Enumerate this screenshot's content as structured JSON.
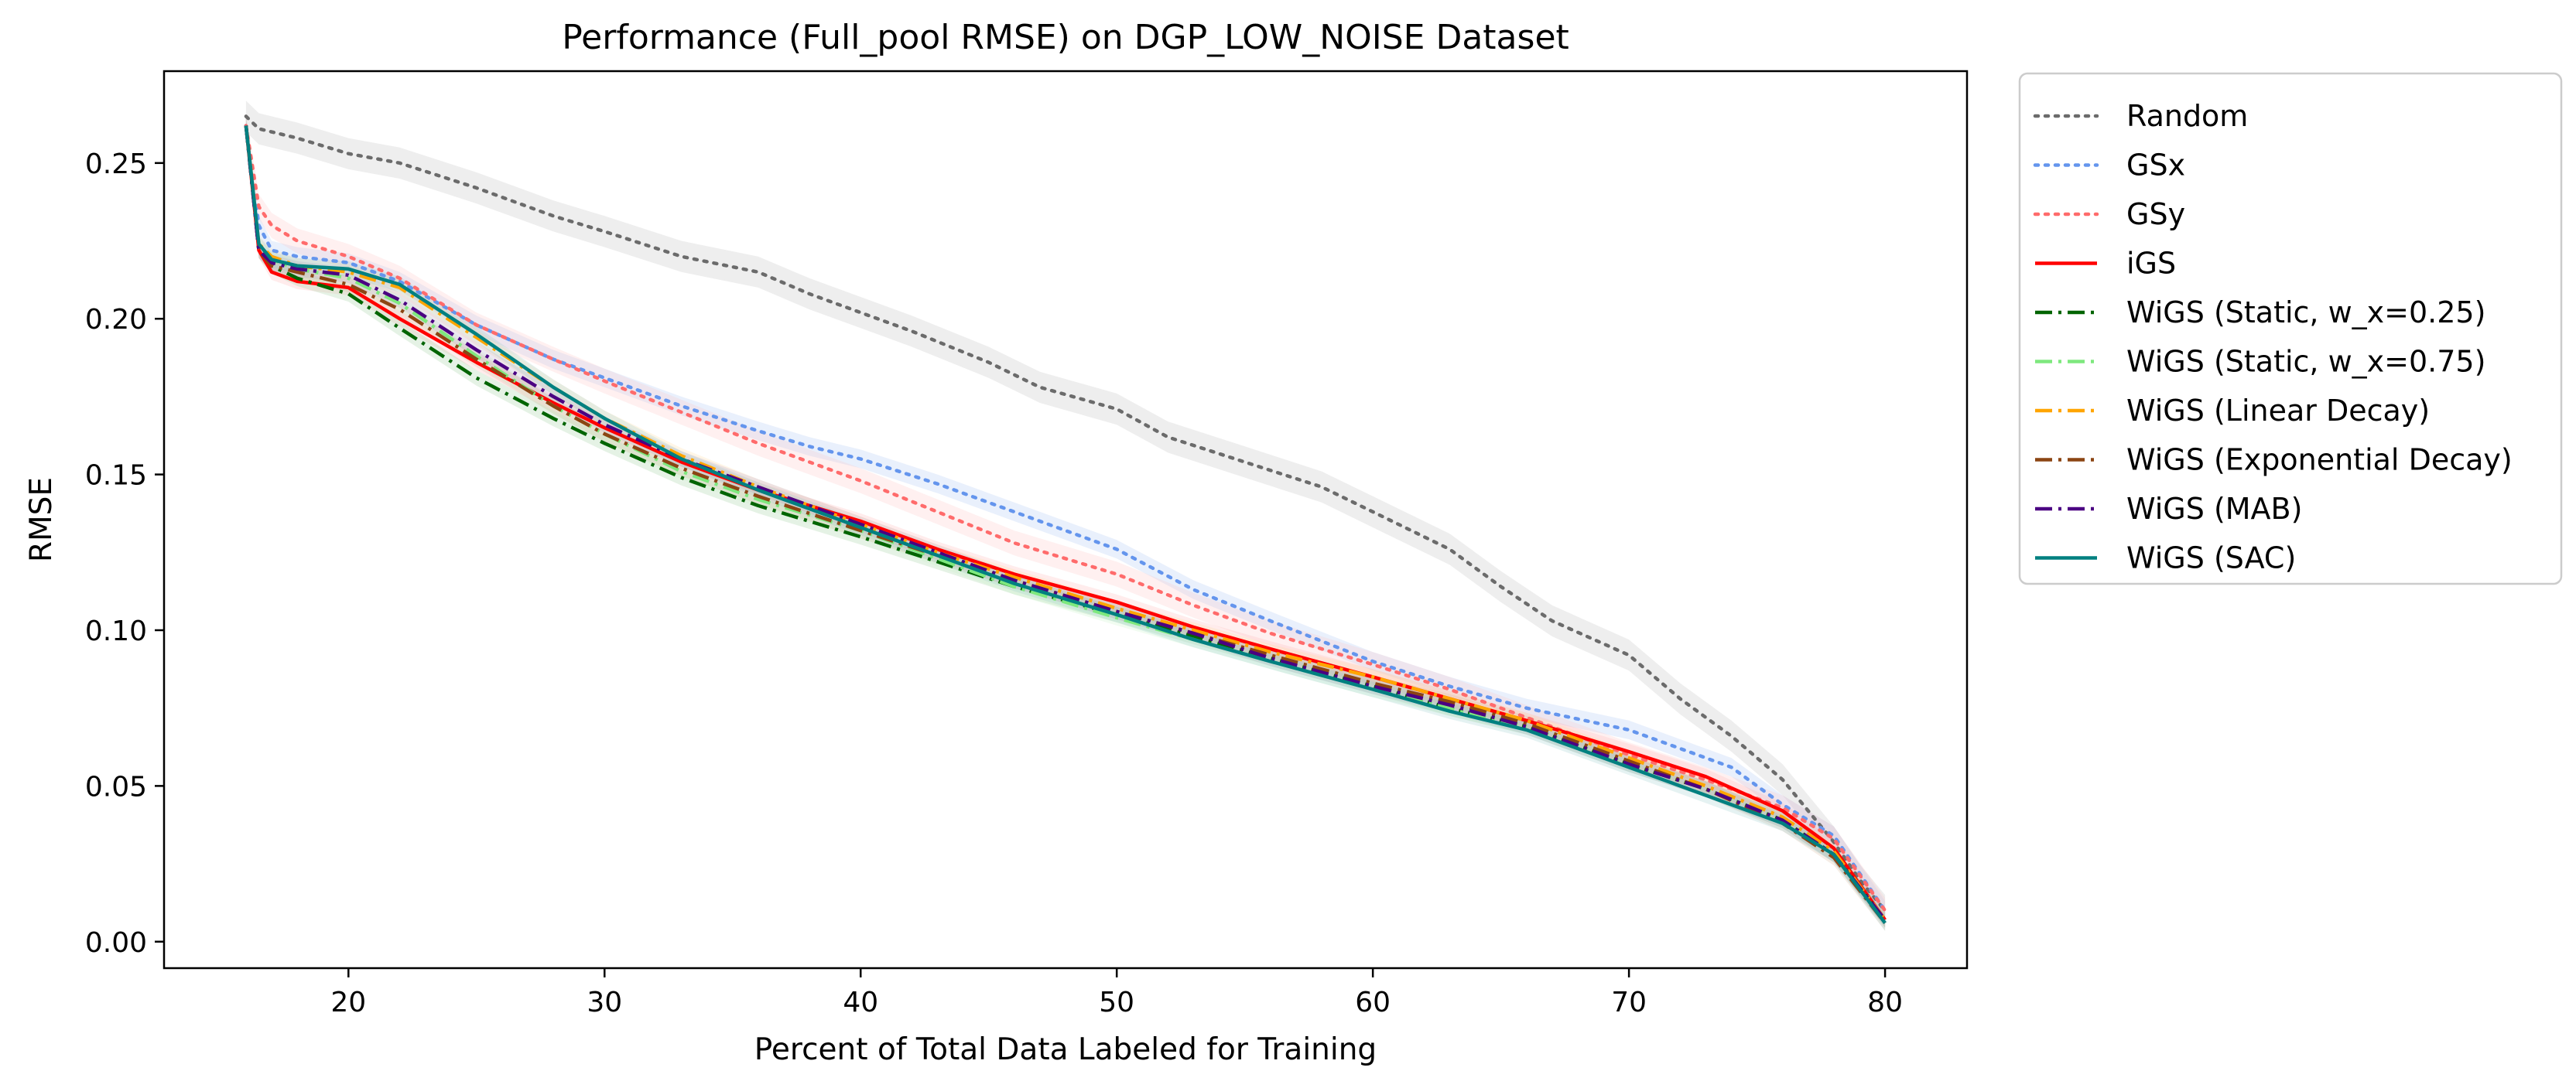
{
  "chart_data": {
    "type": "line",
    "title": "Performance (Full_pool RMSE) on DGP_LOW_NOISE Dataset",
    "xlabel": "Percent of Total Data Labeled for Training",
    "ylabel": "RMSE",
    "xlim": [
      12.8,
      83.2
    ],
    "ylim": [
      -0.0085,
      0.2795
    ],
    "xticks": [
      20,
      30,
      40,
      50,
      60,
      70,
      80
    ],
    "yticks": [
      0.0,
      0.05,
      0.1,
      0.15,
      0.2,
      0.25
    ],
    "ytick_labels": [
      "0.00",
      "0.05",
      "0.10",
      "0.15",
      "0.20",
      "0.25"
    ],
    "grid": false,
    "legend_position": "outside right, top",
    "series": [
      {
        "name": "Random",
        "color": "#6b6b6b",
        "style": "dotted",
        "band": 0.005,
        "band_color": "#bdbdbd",
        "x": [
          16,
          16.5,
          18,
          20,
          22,
          25,
          28,
          30,
          33,
          36,
          38,
          40,
          42,
          45,
          47,
          50,
          52,
          55,
          58,
          60,
          63,
          65,
          67,
          70,
          72,
          74,
          76,
          78,
          79,
          80
        ],
        "y": [
          0.265,
          0.261,
          0.258,
          0.253,
          0.25,
          0.242,
          0.233,
          0.228,
          0.22,
          0.215,
          0.208,
          0.202,
          0.196,
          0.186,
          0.178,
          0.171,
          0.162,
          0.154,
          0.146,
          0.138,
          0.126,
          0.114,
          0.103,
          0.092,
          0.078,
          0.066,
          0.052,
          0.032,
          0.02,
          0.01
        ]
      },
      {
        "name": "GSx",
        "color": "#6495ed",
        "style": "dotted",
        "band": 0.003,
        "band_color": "#a9c4f5",
        "x": [
          16,
          16.5,
          17,
          18,
          20,
          22,
          25,
          28,
          30,
          33,
          36,
          38,
          40,
          43,
          46,
          50,
          53,
          56,
          60,
          63,
          66,
          70,
          72,
          74,
          76,
          78,
          80
        ],
        "y": [
          0.262,
          0.23,
          0.222,
          0.22,
          0.218,
          0.212,
          0.198,
          0.187,
          0.181,
          0.172,
          0.164,
          0.159,
          0.155,
          0.147,
          0.138,
          0.126,
          0.113,
          0.103,
          0.09,
          0.082,
          0.075,
          0.068,
          0.062,
          0.056,
          0.044,
          0.034,
          0.01
        ]
      },
      {
        "name": "GSy",
        "color": "#ff6b6b",
        "style": "dotted",
        "band": 0.004,
        "band_color": "#ffc2c2",
        "x": [
          16,
          16.5,
          17,
          18,
          20,
          22,
          25,
          28,
          30,
          33,
          36,
          40,
          43,
          46,
          50,
          53,
          56,
          60,
          63,
          66,
          70,
          73,
          76,
          78,
          80
        ],
        "y": [
          0.262,
          0.236,
          0.23,
          0.225,
          0.22,
          0.213,
          0.198,
          0.187,
          0.18,
          0.17,
          0.16,
          0.148,
          0.138,
          0.128,
          0.118,
          0.108,
          0.099,
          0.089,
          0.081,
          0.072,
          0.06,
          0.052,
          0.043,
          0.033,
          0.01
        ]
      },
      {
        "name": "iGS",
        "color": "#ff0000",
        "style": "solid",
        "band": 0.0025,
        "band_color": "#ffb3b3",
        "x": [
          16,
          16.5,
          17,
          18,
          20,
          22,
          25,
          28,
          30,
          33,
          36,
          40,
          43,
          46,
          50,
          53,
          56,
          60,
          63,
          66,
          70,
          73,
          76,
          78,
          80
        ],
        "y": [
          0.262,
          0.222,
          0.215,
          0.212,
          0.21,
          0.2,
          0.186,
          0.173,
          0.165,
          0.154,
          0.145,
          0.135,
          0.126,
          0.118,
          0.109,
          0.101,
          0.094,
          0.085,
          0.078,
          0.071,
          0.061,
          0.053,
          0.042,
          0.03,
          0.007
        ]
      },
      {
        "name": "WiGS (Static, w_x=0.25)",
        "color": "#006400",
        "style": "dashdot",
        "band": 0.0025,
        "band_color": "#99cc99",
        "x": [
          16,
          16.5,
          17,
          18,
          20,
          22,
          25,
          28,
          30,
          33,
          36,
          40,
          43,
          46,
          50,
          53,
          56,
          60,
          63,
          66,
          70,
          73,
          76,
          78,
          80
        ],
        "y": [
          0.262,
          0.222,
          0.217,
          0.213,
          0.208,
          0.197,
          0.181,
          0.168,
          0.16,
          0.149,
          0.14,
          0.13,
          0.122,
          0.114,
          0.105,
          0.098,
          0.091,
          0.082,
          0.075,
          0.069,
          0.057,
          0.049,
          0.039,
          0.028,
          0.007
        ]
      },
      {
        "name": "WiGS (Static, w_x=0.75)",
        "color": "#7ee87e",
        "style": "dashdot",
        "band": 0.0025,
        "band_color": "#c9f5c9",
        "x": [
          16,
          16.5,
          17,
          18,
          20,
          22,
          25,
          28,
          30,
          33,
          36,
          40,
          43,
          46,
          50,
          53,
          56,
          60,
          63,
          66,
          70,
          73,
          76,
          78,
          80
        ],
        "y": [
          0.262,
          0.223,
          0.219,
          0.216,
          0.213,
          0.205,
          0.188,
          0.172,
          0.163,
          0.151,
          0.142,
          0.132,
          0.123,
          0.114,
          0.104,
          0.097,
          0.09,
          0.081,
          0.075,
          0.069,
          0.057,
          0.049,
          0.039,
          0.028,
          0.007
        ]
      },
      {
        "name": "WiGS (Linear Decay)",
        "color": "#ffa500",
        "style": "dashdot",
        "band": 0.0025,
        "band_color": "#ffdca0",
        "x": [
          16,
          16.5,
          17,
          18,
          20,
          22,
          25,
          28,
          30,
          33,
          36,
          40,
          43,
          46,
          50,
          53,
          56,
          60,
          63,
          66,
          70,
          73,
          76,
          78,
          80
        ],
        "y": [
          0.262,
          0.224,
          0.22,
          0.217,
          0.215,
          0.21,
          0.194,
          0.178,
          0.168,
          0.156,
          0.146,
          0.134,
          0.125,
          0.117,
          0.107,
          0.1,
          0.093,
          0.085,
          0.078,
          0.071,
          0.059,
          0.05,
          0.04,
          0.029,
          0.007
        ]
      },
      {
        "name": "WiGS (Exponential Decay)",
        "color": "#8b4513",
        "style": "dashdot",
        "band": 0.0025,
        "band_color": "#d9b89a",
        "x": [
          16,
          16.5,
          17,
          18,
          20,
          22,
          25,
          28,
          30,
          33,
          36,
          40,
          43,
          46,
          50,
          53,
          56,
          60,
          63,
          66,
          70,
          73,
          76,
          78,
          80
        ],
        "y": [
          0.262,
          0.222,
          0.217,
          0.215,
          0.211,
          0.203,
          0.187,
          0.172,
          0.163,
          0.152,
          0.143,
          0.132,
          0.124,
          0.116,
          0.106,
          0.099,
          0.092,
          0.083,
          0.077,
          0.07,
          0.058,
          0.049,
          0.038,
          0.027,
          0.006
        ]
      },
      {
        "name": "WiGS (MAB)",
        "color": "#4b0082",
        "style": "dashdot",
        "band": 0.0025,
        "band_color": "#b8a3cc",
        "x": [
          16,
          16.5,
          17,
          18,
          20,
          22,
          25,
          28,
          30,
          33,
          36,
          40,
          43,
          46,
          50,
          53,
          56,
          60,
          63,
          66,
          70,
          73,
          76,
          78,
          80
        ],
        "y": [
          0.262,
          0.222,
          0.218,
          0.216,
          0.214,
          0.206,
          0.19,
          0.175,
          0.166,
          0.155,
          0.146,
          0.134,
          0.125,
          0.116,
          0.106,
          0.099,
          0.091,
          0.082,
          0.076,
          0.069,
          0.057,
          0.049,
          0.039,
          0.028,
          0.007
        ]
      },
      {
        "name": "WiGS (SAC)",
        "color": "#008080",
        "style": "solid",
        "band": 0.0025,
        "band_color": "#99cccc",
        "x": [
          16,
          16.5,
          17,
          18,
          20,
          22,
          25,
          28,
          30,
          33,
          36,
          40,
          43,
          46,
          50,
          53,
          56,
          60,
          63,
          66,
          70,
          73,
          76,
          78,
          80
        ],
        "y": [
          0.262,
          0.224,
          0.219,
          0.217,
          0.216,
          0.211,
          0.195,
          0.178,
          0.168,
          0.155,
          0.145,
          0.133,
          0.124,
          0.115,
          0.105,
          0.097,
          0.09,
          0.081,
          0.074,
          0.068,
          0.056,
          0.047,
          0.038,
          0.028,
          0.006
        ]
      }
    ]
  }
}
